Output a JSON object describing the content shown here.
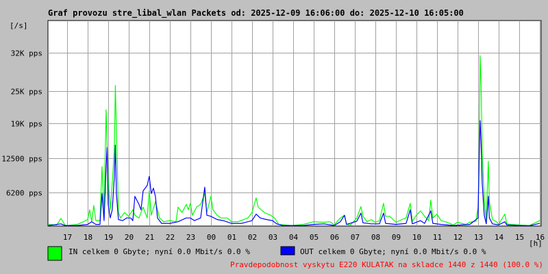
{
  "chart_data": {
    "type": "line",
    "title": "Graf provozu stre_libal_wlan Packets od: 2025-12-09 16:06:00 do: 2025-12-10 16:05:00",
    "ylabel": "[/s]",
    "xlabel": "[h]",
    "x_ticks": [
      "17",
      "18",
      "19",
      "20",
      "21",
      "22",
      "23",
      "00",
      "01",
      "02",
      "03",
      "04",
      "05",
      "06",
      "07",
      "08",
      "09",
      "10",
      "11",
      "12",
      "13",
      "14",
      "15",
      "16"
    ],
    "y_ticks": [
      {
        "value": 6200,
        "label": "6200 pps"
      },
      {
        "value": 12500,
        "label": "12500 pps"
      },
      {
        "value": 19000,
        "label": "19K pps"
      },
      {
        "value": 25000,
        "label": "25K pps"
      },
      {
        "value": 32000,
        "label": "32K pps"
      }
    ],
    "ylim": [
      0,
      38000
    ],
    "xlim": [
      16.07,
      40.07
    ],
    "grid": true,
    "series": [
      {
        "name": "IN",
        "color": "#00ff00",
        "points": [
          [
            16.1,
            300
          ],
          [
            16.5,
            200
          ],
          [
            16.7,
            1400
          ],
          [
            16.9,
            200
          ],
          [
            17.0,
            100
          ],
          [
            17.5,
            300
          ],
          [
            17.8,
            800
          ],
          [
            18.0,
            1200
          ],
          [
            18.1,
            3000
          ],
          [
            18.2,
            800
          ],
          [
            18.3,
            3800
          ],
          [
            18.4,
            1000
          ],
          [
            18.6,
            1000
          ],
          [
            18.7,
            11000
          ],
          [
            18.8,
            2000
          ],
          [
            18.9,
            21500
          ],
          [
            18.95,
            14800
          ],
          [
            19.0,
            9000
          ],
          [
            19.1,
            3000
          ],
          [
            19.2,
            8000
          ],
          [
            19.3,
            14000
          ],
          [
            19.35,
            26000
          ],
          [
            19.4,
            18000
          ],
          [
            19.5,
            2500
          ],
          [
            19.6,
            1500
          ],
          [
            19.8,
            2500
          ],
          [
            20.0,
            1800
          ],
          [
            20.2,
            3000
          ],
          [
            20.3,
            2000
          ],
          [
            20.5,
            1500
          ],
          [
            20.7,
            3500
          ],
          [
            20.9,
            1500
          ],
          [
            21.0,
            6500
          ],
          [
            21.1,
            2000
          ],
          [
            21.3,
            4500
          ],
          [
            21.5,
            1500
          ],
          [
            21.7,
            800
          ],
          [
            22.0,
            1000
          ],
          [
            22.3,
            800
          ],
          [
            22.4,
            3500
          ],
          [
            22.6,
            2500
          ],
          [
            22.8,
            4000
          ],
          [
            22.9,
            3000
          ],
          [
            23.0,
            4200
          ],
          [
            23.1,
            2000
          ],
          [
            23.3,
            3500
          ],
          [
            23.5,
            4000
          ],
          [
            23.7,
            6000
          ],
          [
            23.8,
            2500
          ],
          [
            24.0,
            5500
          ],
          [
            24.1,
            3000
          ],
          [
            24.3,
            2000
          ],
          [
            24.5,
            1500
          ],
          [
            24.8,
            1500
          ],
          [
            25.0,
            800
          ],
          [
            25.3,
            800
          ],
          [
            25.6,
            1200
          ],
          [
            25.8,
            1500
          ],
          [
            26.0,
            2500
          ],
          [
            26.2,
            5200
          ],
          [
            26.3,
            3500
          ],
          [
            26.6,
            2500
          ],
          [
            26.9,
            2000
          ],
          [
            27.1,
            1500
          ],
          [
            27.3,
            300
          ],
          [
            27.6,
            200
          ],
          [
            27.9,
            100
          ],
          [
            28.5,
            300
          ],
          [
            29.0,
            800
          ],
          [
            29.5,
            700
          ],
          [
            29.8,
            800
          ],
          [
            30.0,
            200
          ],
          [
            30.3,
            1500
          ],
          [
            30.5,
            2000
          ],
          [
            30.6,
            300
          ],
          [
            30.8,
            200
          ],
          [
            31.1,
            1500
          ],
          [
            31.3,
            3600
          ],
          [
            31.4,
            1800
          ],
          [
            31.6,
            800
          ],
          [
            31.8,
            1200
          ],
          [
            32.0,
            700
          ],
          [
            32.2,
            1000
          ],
          [
            32.4,
            4200
          ],
          [
            32.5,
            1800
          ],
          [
            32.7,
            1800
          ],
          [
            33.0,
            700
          ],
          [
            33.3,
            1200
          ],
          [
            33.5,
            1500
          ],
          [
            33.7,
            4200
          ],
          [
            33.8,
            900
          ],
          [
            34.0,
            2000
          ],
          [
            34.2,
            2800
          ],
          [
            34.4,
            1800
          ],
          [
            34.6,
            1000
          ],
          [
            34.7,
            4800
          ],
          [
            34.8,
            1500
          ],
          [
            35.0,
            2200
          ],
          [
            35.2,
            1000
          ],
          [
            35.5,
            700
          ],
          [
            35.8,
            200
          ],
          [
            36.0,
            700
          ],
          [
            36.4,
            300
          ],
          [
            36.6,
            700
          ],
          [
            36.9,
            900
          ],
          [
            37.0,
            3500
          ],
          [
            37.05,
            12000
          ],
          [
            37.1,
            31500
          ],
          [
            37.15,
            26000
          ],
          [
            37.2,
            14000
          ],
          [
            37.3,
            5000
          ],
          [
            37.4,
            1000
          ],
          [
            37.5,
            12000
          ],
          [
            37.55,
            4500
          ],
          [
            37.7,
            1200
          ],
          [
            37.9,
            800
          ],
          [
            38.0,
            300
          ],
          [
            38.3,
            2200
          ],
          [
            38.4,
            400
          ],
          [
            38.6,
            300
          ],
          [
            39.0,
            200
          ],
          [
            39.5,
            100
          ],
          [
            40.0,
            1000
          ]
        ]
      },
      {
        "name": "OUT",
        "color": "#0000ff",
        "points": [
          [
            16.1,
            100
          ],
          [
            16.7,
            400
          ],
          [
            16.9,
            100
          ],
          [
            17.5,
            100
          ],
          [
            18.0,
            300
          ],
          [
            18.2,
            800
          ],
          [
            18.4,
            300
          ],
          [
            18.6,
            300
          ],
          [
            18.7,
            6000
          ],
          [
            18.8,
            1000
          ],
          [
            18.9,
            11000
          ],
          [
            18.95,
            14500
          ],
          [
            19.0,
            4000
          ],
          [
            19.1,
            1500
          ],
          [
            19.2,
            3000
          ],
          [
            19.3,
            9000
          ],
          [
            19.35,
            15000
          ],
          [
            19.4,
            6000
          ],
          [
            19.5,
            1200
          ],
          [
            19.7,
            1000
          ],
          [
            19.9,
            1500
          ],
          [
            20.1,
            1500
          ],
          [
            20.2,
            1000
          ],
          [
            20.3,
            5500
          ],
          [
            20.5,
            4000
          ],
          [
            20.6,
            3000
          ],
          [
            20.7,
            6500
          ],
          [
            20.9,
            7500
          ],
          [
            21.0,
            9200
          ],
          [
            21.1,
            6000
          ],
          [
            21.2,
            7000
          ],
          [
            21.3,
            5500
          ],
          [
            21.4,
            1500
          ],
          [
            21.6,
            500
          ],
          [
            22.0,
            500
          ],
          [
            22.4,
            800
          ],
          [
            22.8,
            1500
          ],
          [
            23.0,
            1500
          ],
          [
            23.2,
            1000
          ],
          [
            23.5,
            1500
          ],
          [
            23.7,
            7200
          ],
          [
            23.8,
            2000
          ],
          [
            24.0,
            1800
          ],
          [
            24.3,
            1200
          ],
          [
            24.6,
            1000
          ],
          [
            25.0,
            500
          ],
          [
            25.5,
            500
          ],
          [
            26.0,
            1000
          ],
          [
            26.2,
            2200
          ],
          [
            26.4,
            1500
          ],
          [
            26.7,
            1200
          ],
          [
            27.0,
            1000
          ],
          [
            27.2,
            400
          ],
          [
            27.5,
            100
          ],
          [
            28.5,
            100
          ],
          [
            29.0,
            300
          ],
          [
            29.5,
            400
          ],
          [
            30.0,
            100
          ],
          [
            30.3,
            800
          ],
          [
            30.5,
            2000
          ],
          [
            30.6,
            300
          ],
          [
            31.1,
            900
          ],
          [
            31.3,
            2400
          ],
          [
            31.4,
            600
          ],
          [
            31.8,
            400
          ],
          [
            32.2,
            400
          ],
          [
            32.4,
            2400
          ],
          [
            32.5,
            500
          ],
          [
            33.0,
            300
          ],
          [
            33.5,
            500
          ],
          [
            33.7,
            3000
          ],
          [
            33.8,
            400
          ],
          [
            34.2,
            1000
          ],
          [
            34.4,
            500
          ],
          [
            34.7,
            2800
          ],
          [
            34.8,
            500
          ],
          [
            35.2,
            300
          ],
          [
            35.8,
            100
          ],
          [
            36.2,
            200
          ],
          [
            36.6,
            300
          ],
          [
            37.0,
            1500
          ],
          [
            37.05,
            12000
          ],
          [
            37.1,
            19500
          ],
          [
            37.15,
            15000
          ],
          [
            37.2,
            8000
          ],
          [
            37.3,
            2000
          ],
          [
            37.4,
            400
          ],
          [
            37.5,
            5500
          ],
          [
            37.55,
            1500
          ],
          [
            37.7,
            400
          ],
          [
            38.0,
            200
          ],
          [
            38.3,
            800
          ],
          [
            38.4,
            200
          ],
          [
            39.0,
            100
          ],
          [
            39.5,
            50
          ],
          [
            40.0,
            500
          ]
        ]
      }
    ],
    "legend": [
      {
        "color": "#00ff00",
        "text": "IN celkem 0 Gbyte; nyní   0.0 Mbit/s 0.0 %"
      },
      {
        "color": "#0000ff",
        "text": "OUT celkem 0 Gbyte; nyní   0.0 Mbit/s 0.0 %"
      }
    ],
    "note": "Pravdepodobnost vyskytu E220 KULATAK na skladce 1440 z 1440 (100.0 %)",
    "note_color": "#ff0000"
  }
}
